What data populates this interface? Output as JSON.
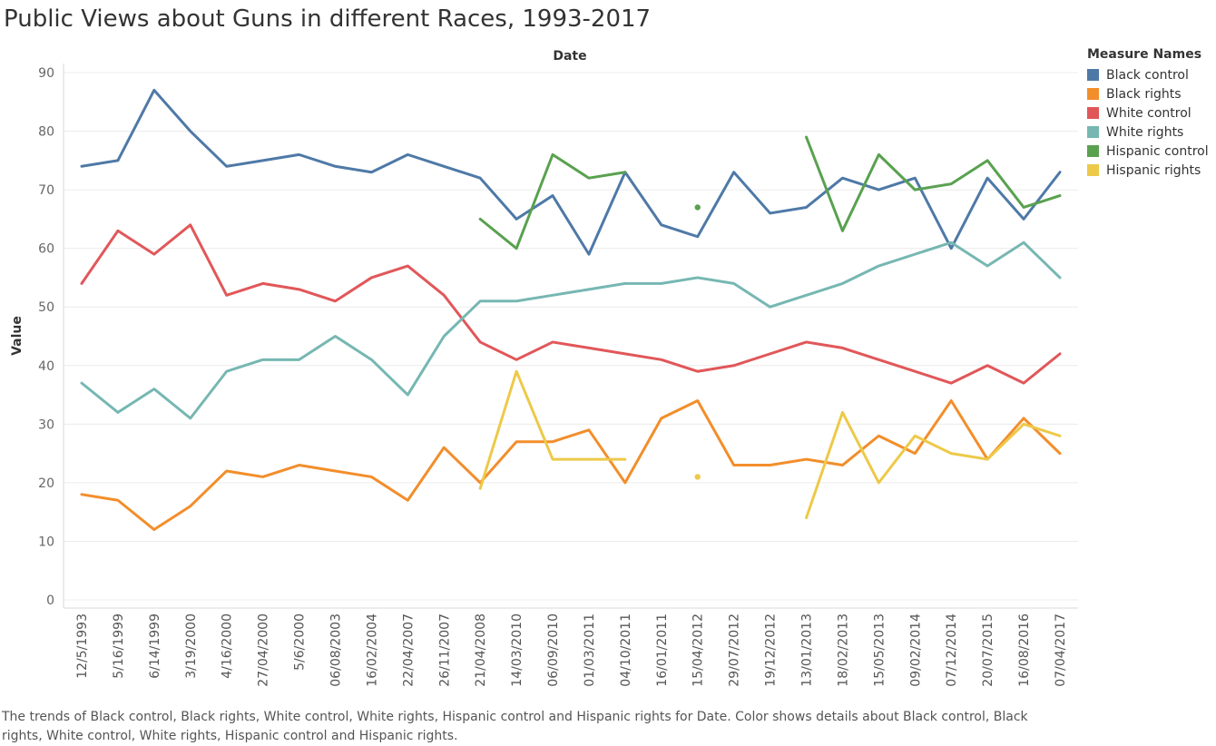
{
  "title": "Public Views about Guns in different Races, 1993-2017",
  "caption": "The trends of Black control, Black rights, White control, White rights, Hispanic control and Hispanic rights for Date.  Color shows details about Black control, Black rights, White control, White rights, Hispanic control and Hispanic rights.",
  "legend": {
    "title": "Measure Names",
    "items": [
      {
        "label": "Black control",
        "color": "#4e79a7"
      },
      {
        "label": "Black rights",
        "color": "#f28e2b"
      },
      {
        "label": "White control",
        "color": "#e15759"
      },
      {
        "label": "White rights",
        "color": "#76b7b2"
      },
      {
        "label": "Hispanic control",
        "color": "#59a14f"
      },
      {
        "label": "Hispanic rights",
        "color": "#edc948"
      }
    ]
  },
  "chart_data": {
    "type": "line",
    "title": "Public Views about Guns in different Races, 1993-2017",
    "xlabel": "Date",
    "ylabel": "Value",
    "ylim": [
      0,
      90
    ],
    "yticks": [
      0,
      10,
      20,
      30,
      40,
      50,
      60,
      70,
      80,
      90
    ],
    "grid": true,
    "legend_position": "right",
    "categories": [
      "12/5/1993",
      "5/16/1999",
      "6/14/1999",
      "3/19/2000",
      "4/16/2000",
      "27/04/2000",
      "5/6/2000",
      "06/08/2003",
      "16/02/2004",
      "22/04/2007",
      "26/11/2007",
      "21/04/2008",
      "14/03/2010",
      "06/09/2010",
      "01/03/2011",
      "04/10/2011",
      "16/01/2011",
      "15/04/2012",
      "29/07/2012",
      "19/12/2012",
      "13/01/2013",
      "18/02/2013",
      "15/05/2013",
      "09/02/2014",
      "07/12/2014",
      "20/07/2015",
      "16/08/2016",
      "07/04/2017"
    ],
    "series": [
      {
        "name": "Black control",
        "color": "#4e79a7",
        "values": [
          74,
          75,
          87,
          80,
          74,
          75,
          76,
          74,
          73,
          76,
          74,
          72,
          65,
          69,
          59,
          73,
          64,
          62,
          73,
          66,
          67,
          72,
          70,
          72,
          60,
          72,
          65,
          73
        ]
      },
      {
        "name": "Black rights",
        "color": "#f28e2b",
        "values": [
          18,
          17,
          12,
          16,
          22,
          21,
          23,
          22,
          21,
          17,
          26,
          20,
          27,
          27,
          29,
          20,
          31,
          34,
          23,
          23,
          24,
          23,
          28,
          25,
          34,
          24,
          31,
          25
        ]
      },
      {
        "name": "White control",
        "color": "#e15759",
        "values": [
          54,
          63,
          59,
          64,
          52,
          54,
          53,
          51,
          55,
          57,
          52,
          44,
          41,
          44,
          43,
          42,
          41,
          39,
          40,
          42,
          44,
          43,
          41,
          39,
          37,
          40,
          37,
          42
        ]
      },
      {
        "name": "White rights",
        "color": "#76b7b2",
        "values": [
          37,
          32,
          36,
          31,
          39,
          41,
          41,
          45,
          41,
          35,
          45,
          51,
          51,
          52,
          53,
          54,
          54,
          55,
          54,
          50,
          52,
          54,
          57,
          59,
          61,
          57,
          61,
          55
        ]
      },
      {
        "name": "Hispanic control",
        "color": "#59a14f",
        "values": [
          null,
          null,
          null,
          null,
          null,
          null,
          null,
          null,
          null,
          null,
          null,
          65,
          60,
          76,
          72,
          73,
          null,
          67,
          null,
          null,
          79,
          63,
          76,
          70,
          71,
          75,
          67,
          69
        ]
      },
      {
        "name": "Hispanic rights",
        "color": "#edc948",
        "values": [
          null,
          null,
          null,
          null,
          null,
          null,
          null,
          null,
          null,
          null,
          null,
          19,
          39,
          24,
          24,
          24,
          null,
          21,
          null,
          null,
          14,
          32,
          20,
          28,
          25,
          24,
          30,
          28
        ]
      }
    ]
  }
}
